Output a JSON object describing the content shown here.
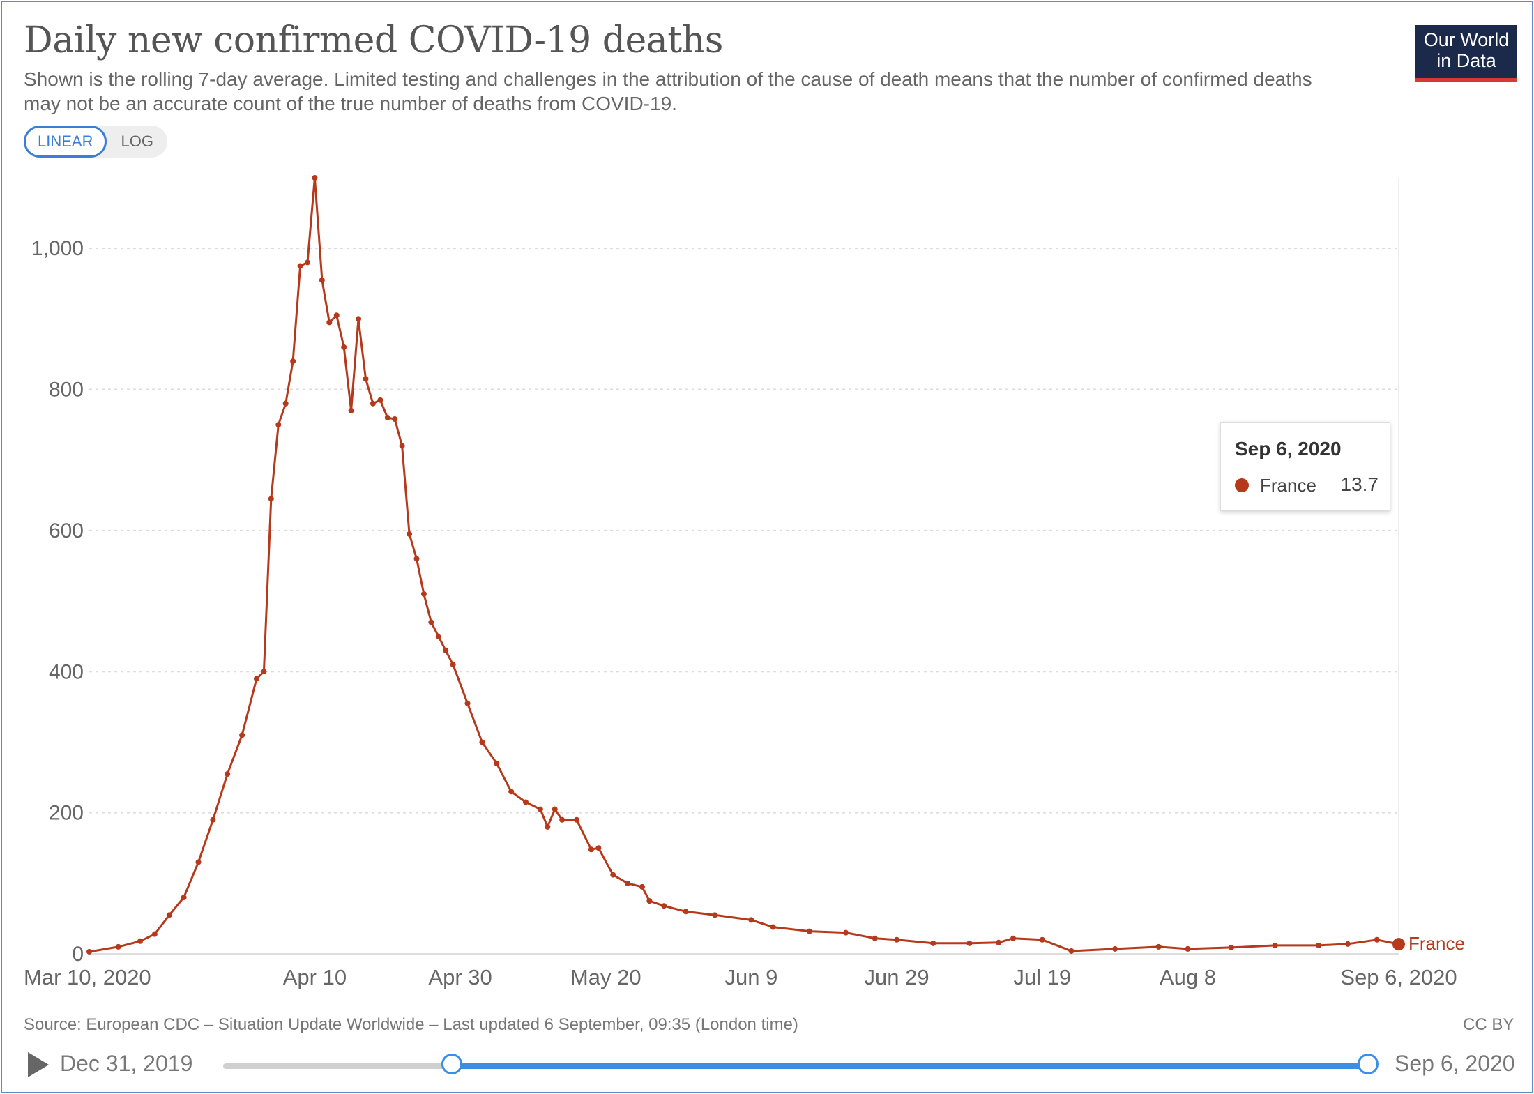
{
  "title": "Daily new confirmed COVID-19 deaths",
  "subtitle": "Shown is the rolling 7-day average. Limited testing and challenges in the attribution of the cause of death means that the number of confirmed deaths may not be an accurate count of the true number of deaths from COVID-19.",
  "logo": {
    "line1": "Our World",
    "line2": "in Data"
  },
  "scale_toggle": {
    "linear": "LINEAR",
    "log": "LOG",
    "selected": "LINEAR"
  },
  "footer": {
    "source": "Source: European CDC – Situation Update Worldwide – Last updated 6 September, 09:35 (London time)",
    "license": "CC BY"
  },
  "timeline": {
    "start": "Dec 31, 2019",
    "end": "Sep 6, 2020",
    "range_start_fraction": 0.2,
    "range_end_fraction": 1.0
  },
  "tooltip": {
    "date": "Sep 6, 2020",
    "series": "France",
    "value": "13.7"
  },
  "colors": {
    "series": "#b5391a",
    "grid": "#dddddd",
    "axis_text": "#666666",
    "accent": "#3b8ee6"
  },
  "chart_data": {
    "type": "line",
    "title": "Daily new confirmed COVID-19 deaths",
    "ylim": [
      0,
      1100
    ],
    "y_ticks": [
      0,
      200,
      400,
      600,
      800,
      1000
    ],
    "y_tick_labels": [
      "0",
      "200",
      "400",
      "600",
      "800",
      "1,000"
    ],
    "x_range": [
      "2020-03-10",
      "2020-09-06"
    ],
    "x_ticks": [
      "2020-03-10",
      "2020-04-10",
      "2020-04-30",
      "2020-05-20",
      "2020-06-09",
      "2020-06-29",
      "2020-07-19",
      "2020-08-08",
      "2020-09-06"
    ],
    "x_tick_labels": [
      "Mar 10, 2020",
      "Apr 10",
      "Apr 30",
      "May 20",
      "Jun 9",
      "Jun 29",
      "Jul 19",
      "Aug 8",
      "Sep 6, 2020"
    ],
    "grid": "horizontal dotted",
    "end_label": "France",
    "series": [
      {
        "name": "France",
        "color": "#b5391a",
        "points": [
          [
            "2020-03-10",
            3
          ],
          [
            "2020-03-14",
            10
          ],
          [
            "2020-03-17",
            18
          ],
          [
            "2020-03-19",
            28
          ],
          [
            "2020-03-21",
            55
          ],
          [
            "2020-03-23",
            80
          ],
          [
            "2020-03-25",
            130
          ],
          [
            "2020-03-27",
            190
          ],
          [
            "2020-03-29",
            255
          ],
          [
            "2020-03-31",
            310
          ],
          [
            "2020-04-02",
            390
          ],
          [
            "2020-04-03",
            400
          ],
          [
            "2020-04-04",
            645
          ],
          [
            "2020-04-05",
            750
          ],
          [
            "2020-04-06",
            780
          ],
          [
            "2020-04-07",
            840
          ],
          [
            "2020-04-08",
            975
          ],
          [
            "2020-04-09",
            980
          ],
          [
            "2020-04-10",
            1100
          ],
          [
            "2020-04-11",
            955
          ],
          [
            "2020-04-12",
            895
          ],
          [
            "2020-04-13",
            905
          ],
          [
            "2020-04-14",
            860
          ],
          [
            "2020-04-15",
            770
          ],
          [
            "2020-04-16",
            900
          ],
          [
            "2020-04-17",
            815
          ],
          [
            "2020-04-18",
            780
          ],
          [
            "2020-04-19",
            785
          ],
          [
            "2020-04-20",
            760
          ],
          [
            "2020-04-21",
            758
          ],
          [
            "2020-04-22",
            720
          ],
          [
            "2020-04-23",
            595
          ],
          [
            "2020-04-24",
            560
          ],
          [
            "2020-04-25",
            510
          ],
          [
            "2020-04-26",
            470
          ],
          [
            "2020-04-27",
            450
          ],
          [
            "2020-04-28",
            430
          ],
          [
            "2020-04-29",
            410
          ],
          [
            "2020-05-01",
            355
          ],
          [
            "2020-05-03",
            300
          ],
          [
            "2020-05-05",
            270
          ],
          [
            "2020-05-07",
            230
          ],
          [
            "2020-05-09",
            215
          ],
          [
            "2020-05-11",
            205
          ],
          [
            "2020-05-12",
            180
          ],
          [
            "2020-05-13",
            205
          ],
          [
            "2020-05-14",
            190
          ],
          [
            "2020-05-16",
            190
          ],
          [
            "2020-05-18",
            148
          ],
          [
            "2020-05-19",
            150
          ],
          [
            "2020-05-21",
            112
          ],
          [
            "2020-05-23",
            100
          ],
          [
            "2020-05-25",
            95
          ],
          [
            "2020-05-26",
            75
          ],
          [
            "2020-05-28",
            68
          ],
          [
            "2020-05-31",
            60
          ],
          [
            "2020-06-04",
            55
          ],
          [
            "2020-06-09",
            48
          ],
          [
            "2020-06-12",
            38
          ],
          [
            "2020-06-17",
            32
          ],
          [
            "2020-06-22",
            30
          ],
          [
            "2020-06-26",
            22
          ],
          [
            "2020-06-29",
            20
          ],
          [
            "2020-07-04",
            15
          ],
          [
            "2020-07-09",
            15
          ],
          [
            "2020-07-13",
            16
          ],
          [
            "2020-07-15",
            22
          ],
          [
            "2020-07-19",
            20
          ],
          [
            "2020-07-23",
            4
          ],
          [
            "2020-07-29",
            7
          ],
          [
            "2020-08-04",
            10
          ],
          [
            "2020-08-08",
            7
          ],
          [
            "2020-08-14",
            9
          ],
          [
            "2020-08-20",
            12
          ],
          [
            "2020-08-26",
            12
          ],
          [
            "2020-08-30",
            14
          ],
          [
            "2020-09-03",
            20
          ],
          [
            "2020-09-06",
            13.7
          ]
        ]
      }
    ]
  }
}
